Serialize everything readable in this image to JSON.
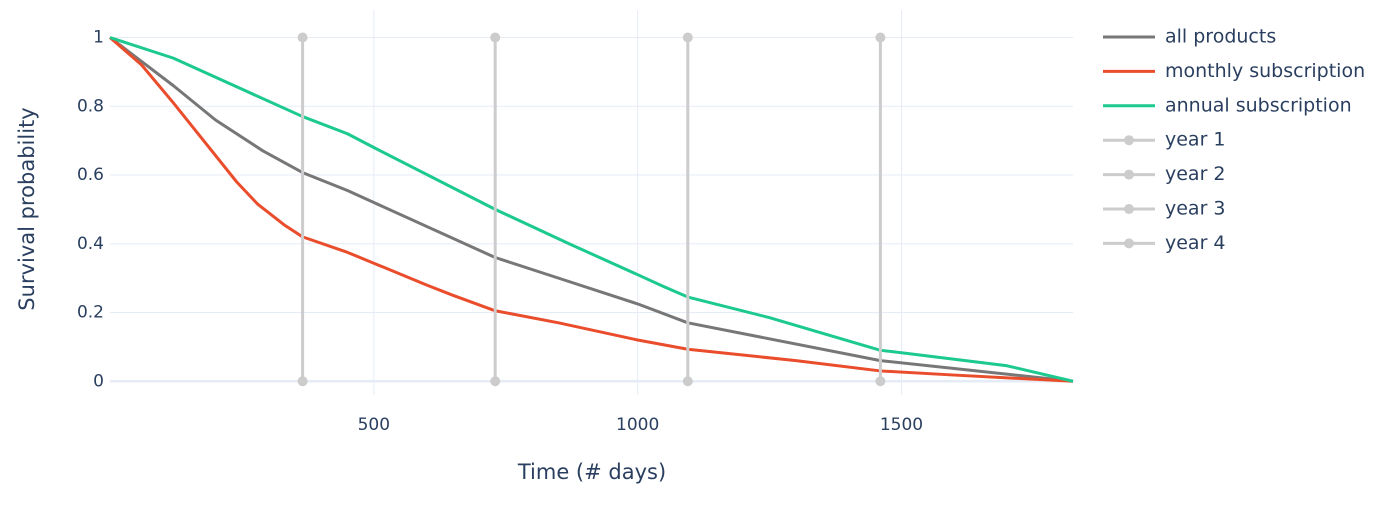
{
  "chart_data": {
    "type": "line",
    "xlabel": "Time (# days)",
    "ylabel": "Survival probability",
    "xlim": [
      0,
      1825
    ],
    "ylim": [
      -0.04,
      1.08
    ],
    "xticks": [
      500,
      1000,
      1500
    ],
    "yticks": [
      0,
      0.2,
      0.4,
      0.6,
      0.8,
      1
    ],
    "grid": true,
    "legend": "right",
    "series": [
      {
        "name": "all products",
        "color": "#777777",
        "x": [
          0,
          120,
          200,
          290,
          365,
          450,
          500,
          730,
          850,
          1000,
          1095,
          1460,
          1825
        ],
        "values": [
          1,
          0.86,
          0.76,
          0.67,
          0.607,
          0.555,
          0.52,
          0.36,
          0.3,
          0.225,
          0.17,
          0.06,
          0
        ]
      },
      {
        "name": "monthly subscription",
        "color": "#ea4d2c",
        "x": [
          0,
          60,
          120,
          240,
          280,
          330,
          365,
          450,
          600,
          650,
          730,
          850,
          1000,
          1095,
          1300,
          1460,
          1600,
          1825
        ],
        "values": [
          1,
          0.92,
          0.81,
          0.58,
          0.515,
          0.455,
          0.42,
          0.375,
          0.28,
          0.25,
          0.205,
          0.17,
          0.12,
          0.093,
          0.06,
          0.03,
          0.018,
          0
        ]
      },
      {
        "name": "annual subscription",
        "color": "#1cc98f",
        "x": [
          0,
          120,
          365,
          450,
          500,
          730,
          870,
          1000,
          1050,
          1095,
          1250,
          1460,
          1500,
          1700,
          1825
        ],
        "values": [
          1,
          0.94,
          0.77,
          0.72,
          0.68,
          0.5,
          0.4,
          0.31,
          0.275,
          0.245,
          0.185,
          0.09,
          0.083,
          0.045,
          0
        ]
      },
      {
        "name": "year 1",
        "color": "#cccccc",
        "markers": true,
        "x": [
          365,
          365
        ],
        "values": [
          0,
          1
        ]
      },
      {
        "name": "year 2",
        "color": "#cccccc",
        "markers": true,
        "x": [
          730,
          730
        ],
        "values": [
          0,
          1
        ]
      },
      {
        "name": "year 3",
        "color": "#cccccc",
        "markers": true,
        "x": [
          1095,
          1095
        ],
        "values": [
          0,
          1
        ]
      },
      {
        "name": "year 4",
        "color": "#cccccc",
        "markers": true,
        "x": [
          1460,
          1460
        ],
        "values": [
          0,
          1
        ]
      }
    ]
  }
}
